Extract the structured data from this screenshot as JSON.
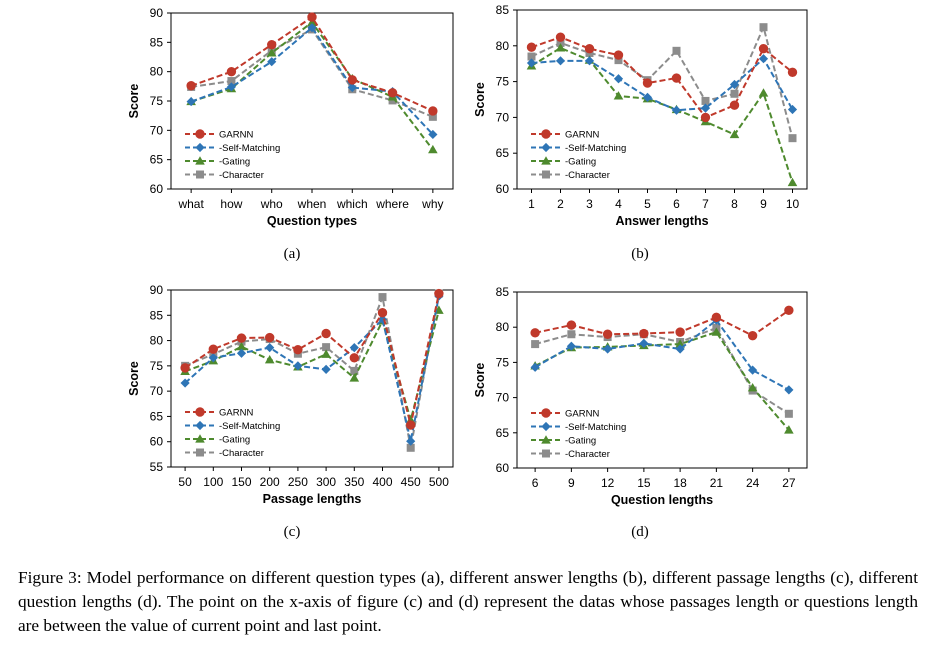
{
  "figure": {
    "caption": "Figure 3: Model performance on different question types (a), different answer lengths (b), different passage lengths (c), different question lengths (d). The point on the x-axis of figure (c) and (d) represent the datas whose passages length or questions length are between the value of current point and last point."
  },
  "colors": {
    "GARNN": "#c0392b",
    "-Self-Matching": "#2e75b6",
    "-Gating": "#4e8a2e",
    "-Character": "#8c8c8c"
  },
  "chart_data": [
    {
      "type": "line",
      "sublabel": "(a)",
      "xlabel": "Question types",
      "ylabel": "Score",
      "ylim": [
        60,
        90
      ],
      "yticks": [
        60,
        65,
        70,
        75,
        80,
        85,
        90
      ],
      "categories": [
        "what",
        "how",
        "who",
        "when",
        "which",
        "where",
        "why"
      ],
      "legend": "lower-left",
      "grid": false,
      "series": [
        {
          "name": "GARNN",
          "marker": "circle",
          "values": [
            77.6,
            80.0,
            84.6,
            89.3,
            78.6,
            76.4,
            73.3
          ]
        },
        {
          "name": "-Self-Matching",
          "marker": "diamond",
          "values": [
            74.9,
            77.4,
            81.7,
            87.5,
            77.3,
            76.6,
            69.3
          ]
        },
        {
          "name": "-Gating",
          "marker": "triangle",
          "values": [
            74.9,
            77.1,
            83.2,
            88.4,
            78.8,
            75.7,
            66.7
          ]
        },
        {
          "name": "-Character",
          "marker": "square",
          "values": [
            77.4,
            78.4,
            83.6,
            87.2,
            77.0,
            75.1,
            72.3
          ]
        }
      ]
    },
    {
      "type": "line",
      "sublabel": "(b)",
      "xlabel": "Answer lengths",
      "ylabel": "Score",
      "ylim": [
        60,
        85
      ],
      "yticks": [
        60,
        65,
        70,
        75,
        80,
        85
      ],
      "categories": [
        "1",
        "2",
        "3",
        "4",
        "5",
        "6",
        "7",
        "8",
        "9",
        "10"
      ],
      "legend": "lower-left",
      "grid": false,
      "series": [
        {
          "name": "GARNN",
          "marker": "circle",
          "values": [
            79.8,
            81.2,
            79.6,
            78.7,
            74.8,
            75.5,
            70.0,
            71.7,
            79.6,
            76.3
          ]
        },
        {
          "name": "-Self-Matching",
          "marker": "diamond",
          "values": [
            77.6,
            77.9,
            77.9,
            75.4,
            72.8,
            71.0,
            71.3,
            74.6,
            78.2,
            71.1
          ]
        },
        {
          "name": "-Gating",
          "marker": "triangle",
          "values": [
            77.2,
            79.7,
            78.0,
            73.0,
            72.6,
            71.1,
            69.4,
            67.6,
            73.4,
            60.9
          ]
        },
        {
          "name": "-Character",
          "marker": "square",
          "values": [
            78.5,
            80.4,
            79.0,
            78.0,
            75.2,
            79.3,
            72.3,
            73.3,
            82.6,
            67.1
          ]
        }
      ]
    },
    {
      "type": "line",
      "sublabel": "(c)",
      "xlabel": "Passage lengths",
      "ylabel": "Score",
      "ylim": [
        55,
        90
      ],
      "yticks": [
        55,
        60,
        65,
        70,
        75,
        80,
        85,
        90
      ],
      "categories": [
        "50",
        "100",
        "150",
        "200",
        "250",
        "300",
        "350",
        "400",
        "450",
        "500"
      ],
      "legend": "lower-left",
      "grid": false,
      "series": [
        {
          "name": "GARNN",
          "marker": "circle",
          "values": [
            74.6,
            78.3,
            80.5,
            80.6,
            78.2,
            81.4,
            76.6,
            85.5,
            63.3,
            89.3
          ]
        },
        {
          "name": "-Self-Matching",
          "marker": "diamond",
          "values": [
            71.6,
            76.6,
            77.5,
            78.6,
            75.0,
            74.3,
            78.6,
            84.2,
            60.1,
            88.8
          ]
        },
        {
          "name": "-Gating",
          "marker": "triangle",
          "values": [
            73.9,
            76.0,
            78.8,
            76.2,
            74.8,
            77.3,
            72.6,
            83.9,
            64.3,
            86.0
          ]
        },
        {
          "name": "-Character",
          "marker": "square",
          "values": [
            75.0,
            77.3,
            79.8,
            80.3,
            77.4,
            78.7,
            74.0,
            88.6,
            58.8,
            89.3
          ]
        }
      ]
    },
    {
      "type": "line",
      "sublabel": "(d)",
      "xlabel": "Question lengths",
      "ylabel": "Score",
      "ylim": [
        60,
        85
      ],
      "yticks": [
        60,
        65,
        70,
        75,
        80,
        85
      ],
      "categories": [
        "6",
        "9",
        "12",
        "15",
        "18",
        "21",
        "24",
        "27"
      ],
      "legend": "lower-left",
      "grid": false,
      "series": [
        {
          "name": "GARNN",
          "marker": "circle",
          "values": [
            79.2,
            80.3,
            79.0,
            79.1,
            79.3,
            81.4,
            78.8,
            82.4
          ]
        },
        {
          "name": "-Self-Matching",
          "marker": "diamond",
          "values": [
            74.3,
            77.3,
            76.9,
            77.7,
            76.9,
            81.0,
            73.9,
            71.1
          ]
        },
        {
          "name": "-Gating",
          "marker": "triangle",
          "values": [
            74.5,
            77.1,
            77.2,
            77.4,
            77.6,
            79.3,
            71.4,
            65.4
          ]
        },
        {
          "name": "-Character",
          "marker": "square",
          "values": [
            77.6,
            79.0,
            78.6,
            79.0,
            77.9,
            79.9,
            71.0,
            67.7
          ]
        }
      ]
    }
  ]
}
